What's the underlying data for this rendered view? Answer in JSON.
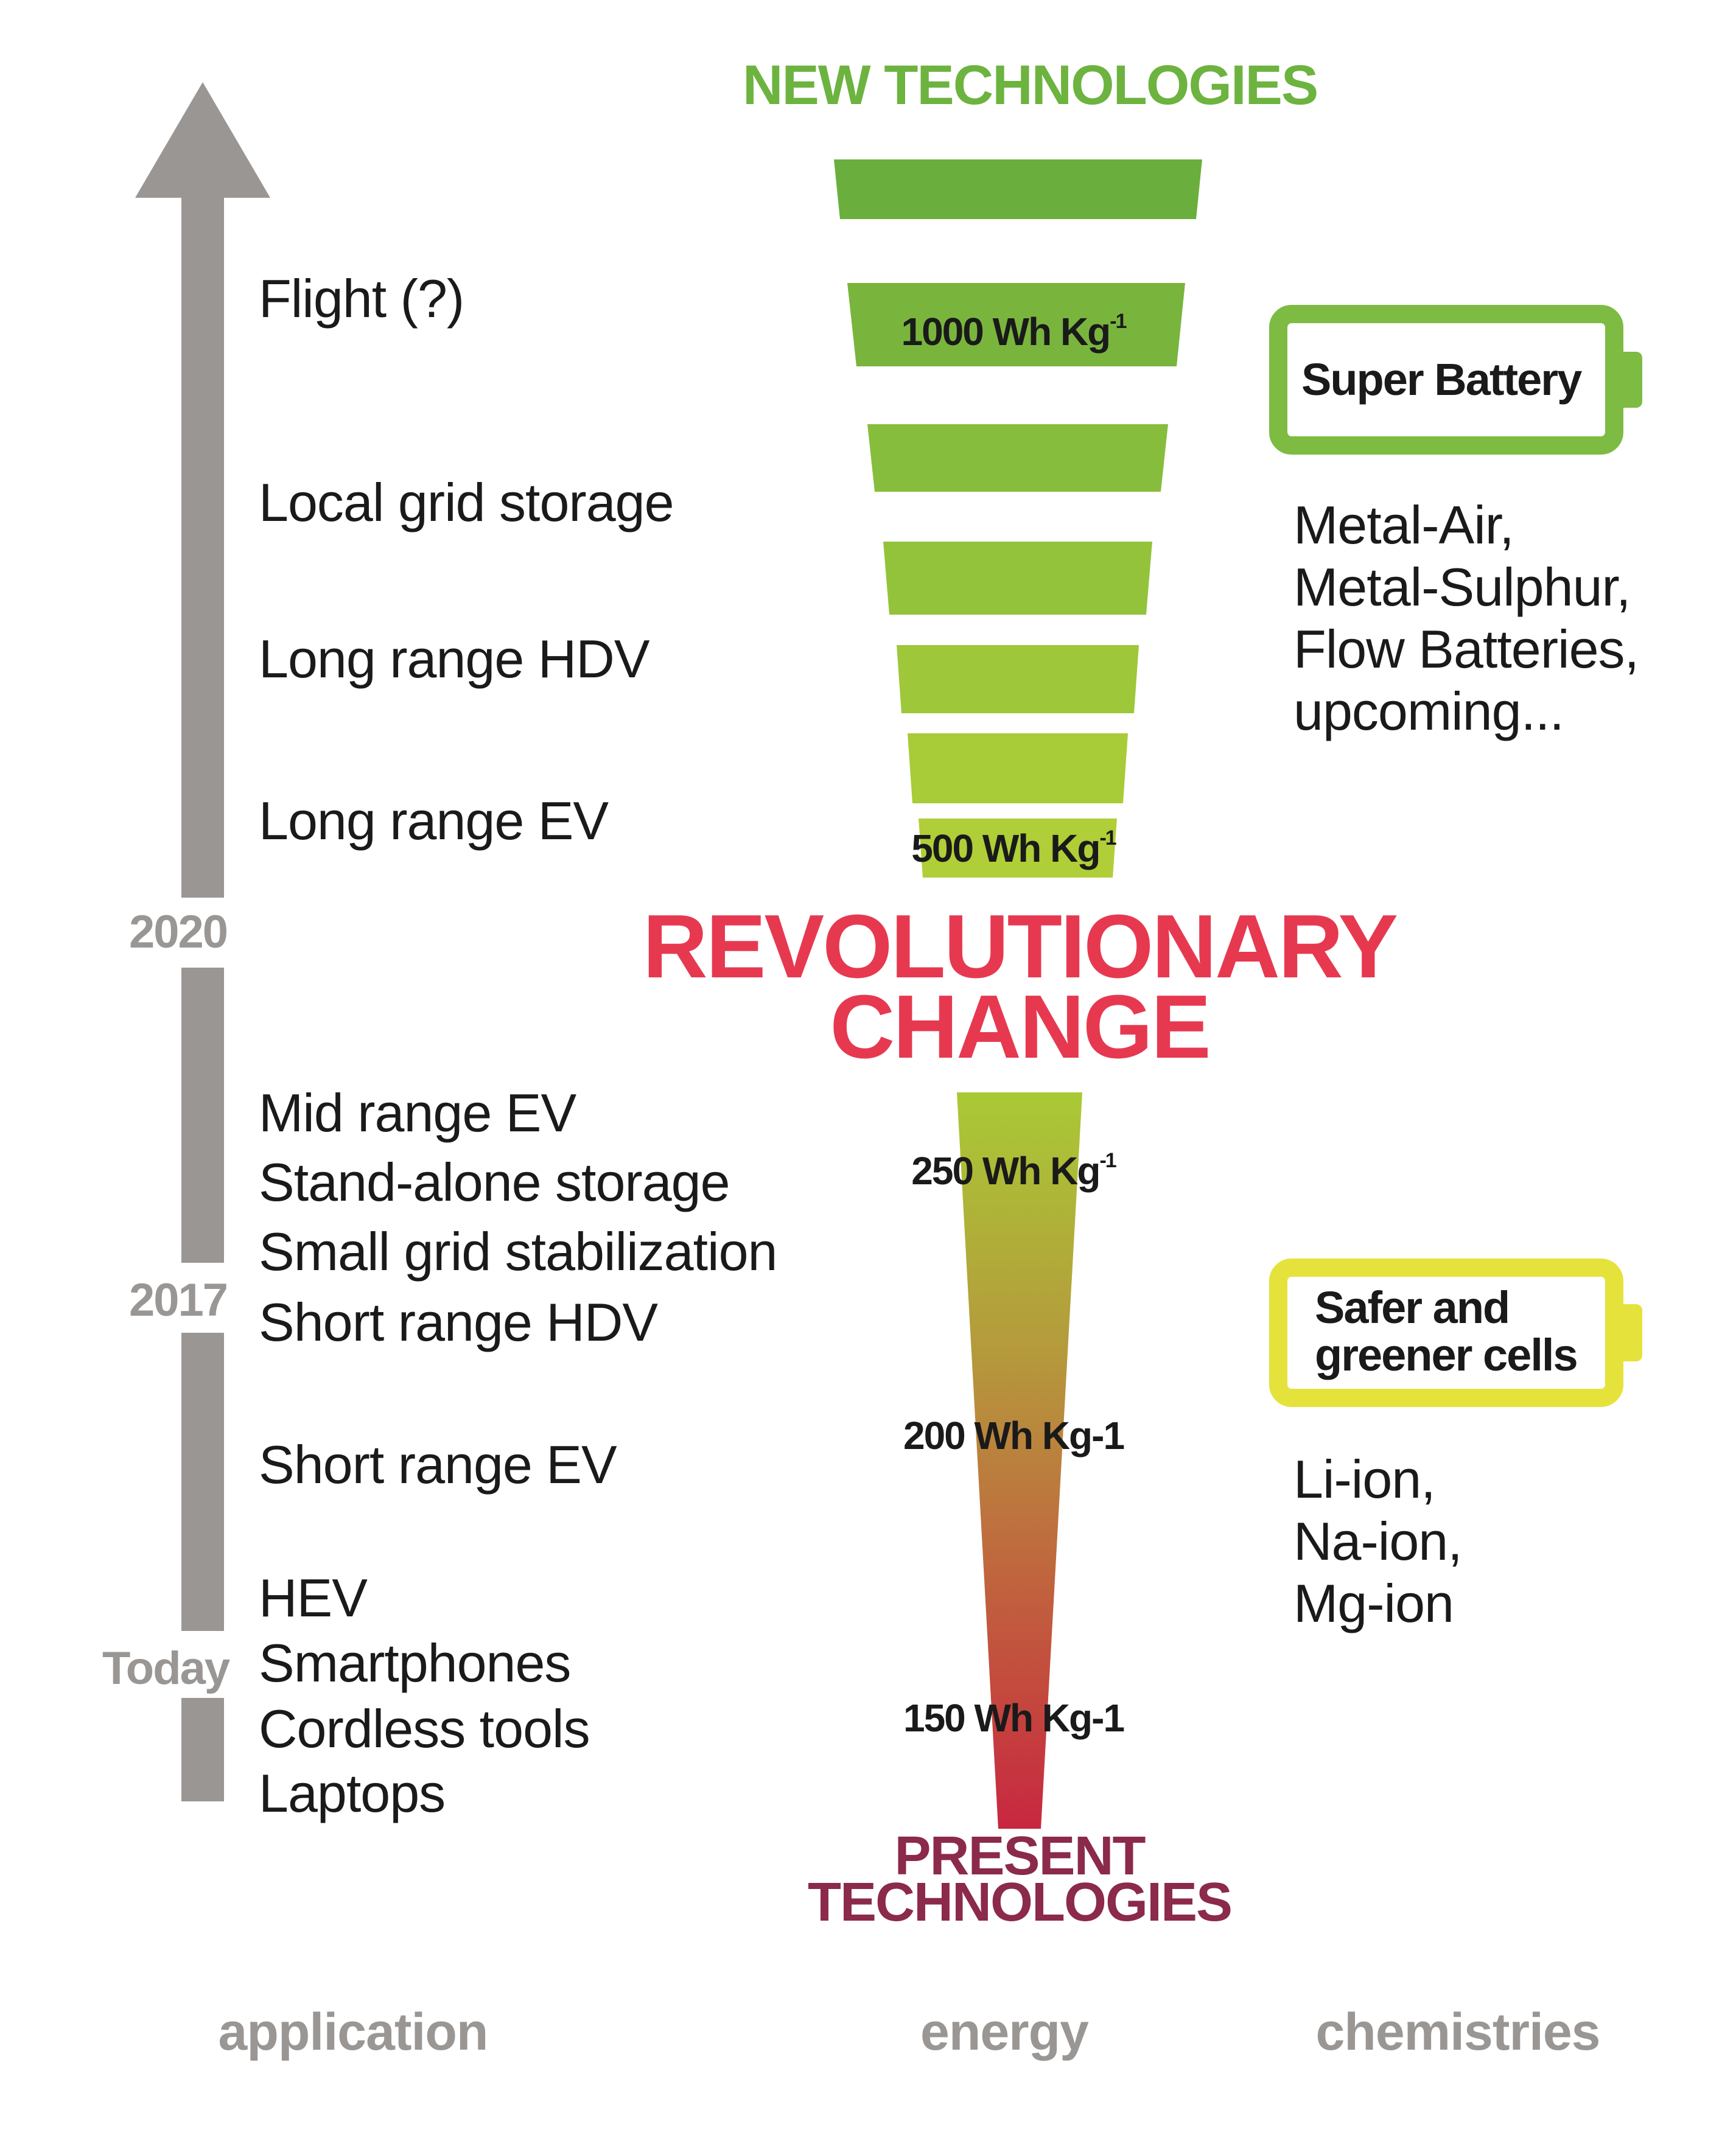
{
  "header": {
    "new_technologies": "NEW TECHNOLOGIES"
  },
  "timeline": {
    "years": [
      "2020",
      "2017",
      "Today"
    ]
  },
  "applications": {
    "flight": "Flight (?)",
    "local_grid": "Local grid storage",
    "long_hdv": "Long range HDV",
    "long_ev": "Long range EV",
    "mid_ev": "Mid range EV",
    "standalone": "Stand-alone storage",
    "small_grid": "Small grid stabilization",
    "short_hdv": "Short range HDV",
    "short_ev": "Short range EV",
    "hev": "HEV",
    "smartphones": "Smartphones",
    "cordless": "Cordless tools",
    "laptops": "Laptops"
  },
  "energy": {
    "e1000": {
      "value": "1000 Wh Kg",
      "sup": "-1"
    },
    "e500": {
      "value": "500 Wh Kg",
      "sup": "-1"
    },
    "e250": {
      "value": "250 Wh Kg",
      "sup": "-1"
    },
    "e200": "200 Wh Kg-1",
    "e150": "150 Wh Kg-1"
  },
  "revolution": {
    "line1": "REVOLUTIONARY",
    "line2": "CHANGE"
  },
  "present": {
    "line1": "PRESENT",
    "line2": "TECHNOLOGIES"
  },
  "batteries": {
    "super": "Super Battery",
    "safer": "Safer and greener cells"
  },
  "chemistries": {
    "future": [
      "Metal-Air,",
      "Metal-Sulphur,",
      "Flow Batteries,",
      "upcoming..."
    ],
    "present": [
      "Li-ion,",
      "Na-ion,",
      "Mg-ion"
    ]
  },
  "footer": {
    "application": "application",
    "energy": "energy",
    "chemistries": "chemistries"
  },
  "colors": {
    "green": "#6db33f",
    "red_title": "#e63950",
    "maroon": "#8b2a4a",
    "grey": "#9a9694",
    "super_battery": "#7dbb42",
    "safer_battery": "#e6e23c"
  }
}
